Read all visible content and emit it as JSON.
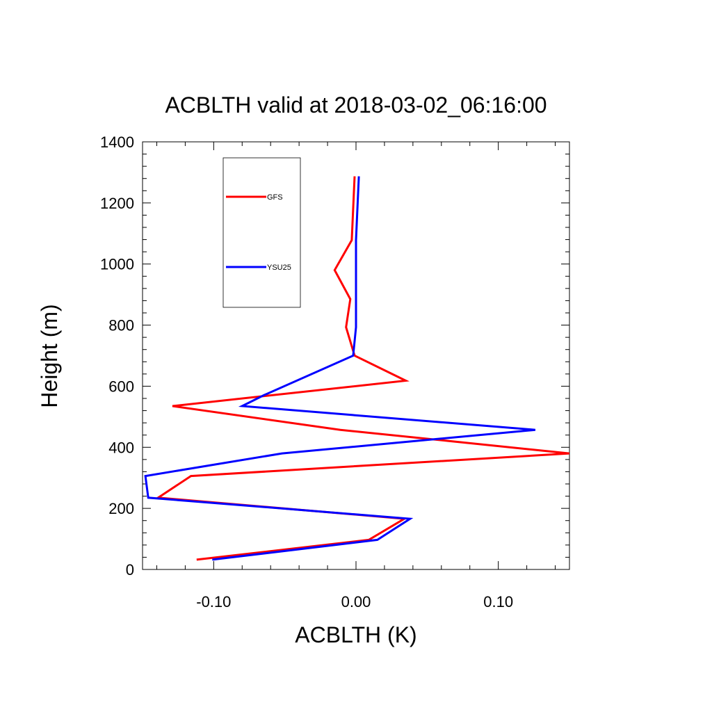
{
  "chart_data": {
    "type": "line",
    "title": "ACBLTH valid at 2018-03-02_06:16:00",
    "xlabel": "ACBLTH (K)",
    "ylabel": "Height (m)",
    "xlim": [
      -0.15,
      0.15
    ],
    "ylim": [
      0,
      1400
    ],
    "xticks": [
      -0.1,
      0.0,
      0.1
    ],
    "xtick_labels": [
      "-0.10",
      "0.00",
      "0.10"
    ],
    "yticks": [
      0,
      200,
      400,
      600,
      800,
      1000,
      1200,
      1400
    ],
    "ytick_labels": [
      "0",
      "200",
      "400",
      "600",
      "800",
      "1000",
      "1200",
      "1400"
    ],
    "legend_position": "top-left",
    "grid": false,
    "series": [
      {
        "name": "GFS",
        "color": "#ff0000",
        "x": [
          -0.112,
          0.009,
          0.034,
          -0.139,
          -0.116,
          0.15,
          -0.011,
          -0.129,
          0.035,
          -0.001,
          -0.007,
          -0.004,
          -0.015,
          -0.003,
          -0.001
        ],
        "y": [
          32,
          97,
          166,
          235,
          306,
          380,
          457,
          535,
          618,
          700,
          793,
          885,
          980,
          1078,
          1287
        ]
      },
      {
        "name": "YSU25",
        "color": "#0000ff",
        "x": [
          -0.101,
          0.015,
          0.038,
          -0.146,
          -0.148,
          -0.052,
          0.126,
          -0.08,
          -0.065,
          -0.002,
          0.0,
          0.0,
          0.0,
          0.0,
          0.002
        ],
        "y": [
          32,
          97,
          166,
          235,
          306,
          380,
          457,
          535,
          570,
          700,
          793,
          885,
          980,
          1078,
          1287
        ]
      }
    ]
  }
}
